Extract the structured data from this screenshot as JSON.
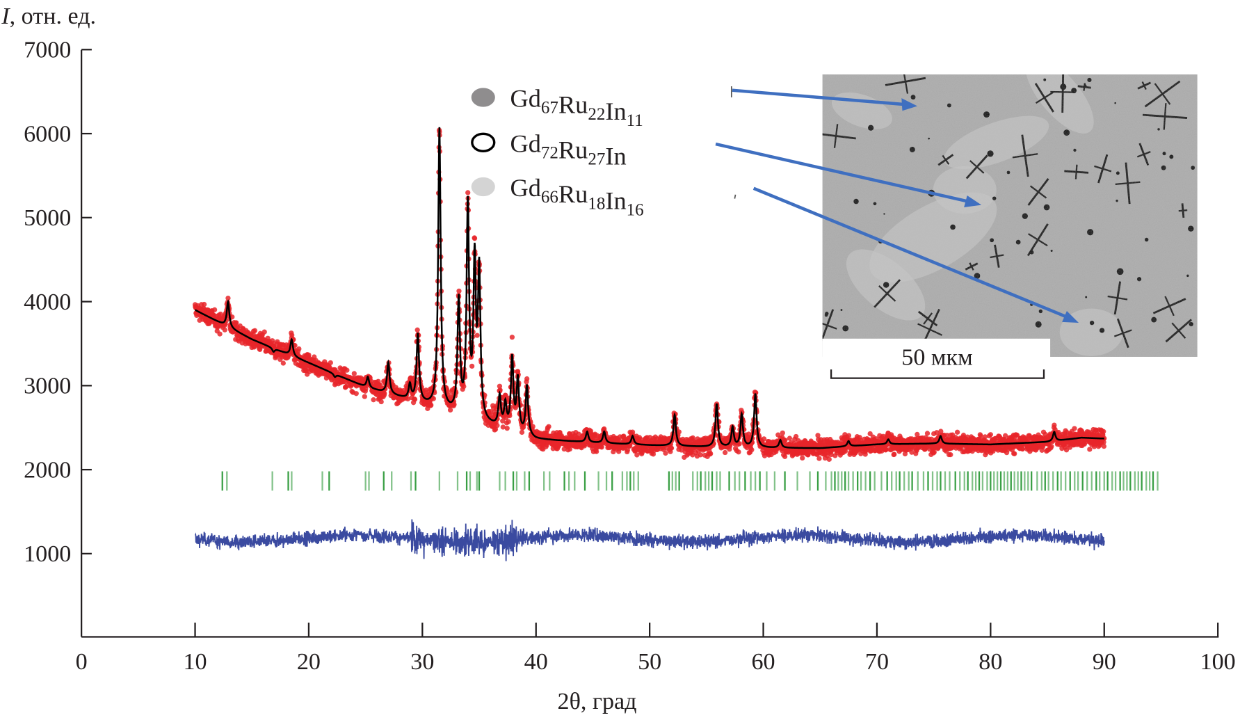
{
  "chart_data": {
    "type": "scatter",
    "ylabel": "I, отн. ед.",
    "ylabel_italic": "I",
    "ylabel_rest": ", отн. ед.",
    "xlabel": "2θ, град",
    "xlim": [
      0,
      100
    ],
    "ylim": [
      0,
      7000
    ],
    "x_ticks": [
      "0",
      "10",
      "20",
      "30",
      "40",
      "50",
      "60",
      "70",
      "80",
      "90",
      "100"
    ],
    "y_ticks": [
      "1000",
      "2000",
      "3000",
      "4000",
      "5000",
      "6000",
      "7000"
    ],
    "grid": false,
    "data_range": [
      10,
      90
    ],
    "colors": {
      "observed": "#e8262a",
      "calculated": "#000000",
      "difference": "#3a4aa0",
      "bragg_ticks": "#2e9a3a",
      "arrows": "#3f6fc0"
    },
    "background": [
      [
        10,
        3900
      ],
      [
        15,
        3550
      ],
      [
        20,
        3270
      ],
      [
        25,
        2980
      ],
      [
        30,
        2780
      ],
      [
        35,
        2560
      ],
      [
        40,
        2360
      ],
      [
        45,
        2320
      ],
      [
        50,
        2290
      ],
      [
        55,
        2270
      ],
      [
        60,
        2260
      ],
      [
        65,
        2255
      ],
      [
        70,
        2300
      ],
      [
        75,
        2310
      ],
      [
        80,
        2300
      ],
      [
        85,
        2330
      ],
      [
        88,
        2380
      ],
      [
        90,
        2370
      ]
    ],
    "peaks": [
      [
        12.9,
        4000
      ],
      [
        16.9,
        3400
      ],
      [
        18.5,
        3550
      ],
      [
        22.3,
        3100
      ],
      [
        25.2,
        3100
      ],
      [
        27.0,
        3270
      ],
      [
        28.9,
        3000
      ],
      [
        29.6,
        3600
      ],
      [
        31.5,
        6050
      ],
      [
        33.2,
        3980
      ],
      [
        34.0,
        5100
      ],
      [
        34.6,
        4400
      ],
      [
        35.0,
        4300
      ],
      [
        36.8,
        2850
      ],
      [
        37.3,
        2750
      ],
      [
        37.9,
        3300
      ],
      [
        38.4,
        3050
      ],
      [
        39.2,
        2980
      ],
      [
        44.5,
        2450
      ],
      [
        46.0,
        2450
      ],
      [
        48.5,
        2400
      ],
      [
        52.2,
        2650
      ],
      [
        55.9,
        2780
      ],
      [
        57.3,
        2500
      ],
      [
        58.1,
        2650
      ],
      [
        59.3,
        2900
      ],
      [
        61.5,
        2350
      ],
      [
        67.5,
        2340
      ],
      [
        71.0,
        2360
      ],
      [
        75.6,
        2400
      ],
      [
        85.6,
        2450
      ]
    ],
    "difference_offset": 1180,
    "bragg_ticks_range": [
      1750,
      1980
    ],
    "bragg_ticks": [
      12.4,
      12.8,
      16.8,
      18.2,
      18.5,
      21.2,
      21.8,
      25.0,
      25.3,
      26.6,
      27.3,
      29.0,
      29.4,
      31.5,
      33.1,
      33.9,
      34.2,
      34.8,
      35.0,
      36.8,
      37.3,
      38.0,
      38.3,
      39.0,
      39.4,
      40.7,
      41.2,
      42.5,
      42.9,
      43.4,
      44.3,
      45.5,
      46.2,
      46.7,
      47.6,
      48.0,
      48.3,
      48.6,
      49.0,
      51.7,
      52.0,
      52.3,
      52.6,
      53.8,
      54.2,
      54.5,
      54.9,
      55.2,
      55.5,
      55.9,
      56.2,
      57.0,
      57.5,
      57.9,
      58.4,
      58.9,
      59.3,
      59.7,
      60.3,
      61.0,
      61.9,
      63.0,
      64.1,
      64.8,
      65.5,
      66.0,
      66.3,
      66.6,
      66.9,
      67.2,
      67.5,
      67.9,
      68.3,
      68.6,
      69.0,
      69.4,
      69.8,
      70.4,
      70.9,
      71.3,
      71.7,
      72.0,
      72.4,
      72.8,
      73.1,
      73.6,
      74.1,
      74.5,
      74.9,
      75.3,
      75.6,
      76.0,
      76.4,
      76.9,
      77.3,
      77.7,
      78.0,
      78.4,
      78.7,
      79.0,
      79.3,
      79.7,
      80.0,
      80.3,
      80.6,
      80.9,
      81.2,
      81.5,
      81.8,
      82.1,
      82.4,
      82.7,
      83.0,
      83.3,
      83.6,
      84.1,
      84.5,
      84.8,
      85.1,
      85.5,
      85.9,
      86.2,
      86.6,
      87.0,
      87.4,
      87.7,
      88.1,
      88.5,
      88.9,
      89.3,
      89.6,
      90.0,
      90.3,
      90.7,
      91.0,
      91.4,
      91.7,
      92.0,
      92.3,
      92.7,
      93.0,
      93.3,
      93.7,
      94.0,
      94.3,
      94.7
    ],
    "legend": [
      {
        "marker": "filled-dark-gray-circle",
        "color": "#8f8d8e",
        "base1": "Gd",
        "sub1": "67",
        "base2": "Ru",
        "sub2": "22",
        "base3": "In",
        "sub3": "11"
      },
      {
        "marker": "open-circle",
        "color": "#000000",
        "base1": "Gd",
        "sub1": "72",
        "base2": "Ru",
        "sub2": "27",
        "base3": "In",
        "sub3": ""
      },
      {
        "marker": "filled-light-gray-circle",
        "color": "#d4d4d4",
        "base1": "Gd",
        "sub1": "66",
        "base2": "Ru",
        "sub2": "18",
        "base3": "In",
        "sub3": "16"
      }
    ],
    "inset": {
      "type": "micrograph",
      "scale_bar_label": "50 мкм"
    }
  }
}
